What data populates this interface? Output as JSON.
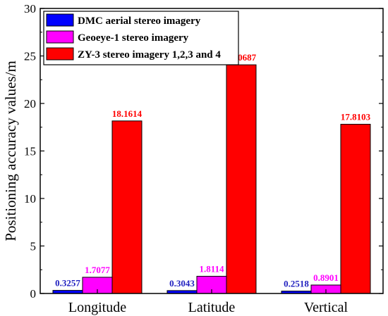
{
  "chart_data": {
    "type": "bar",
    "ylabel": "Positioning accuracy values/m",
    "xlabel": "",
    "categories": [
      "Longitude",
      "Latitude",
      "Vertical"
    ],
    "ylim": [
      0,
      30
    ],
    "yticks": [
      0,
      5,
      10,
      15,
      20,
      25,
      30
    ],
    "grid": false,
    "legend_position": "top-left",
    "series": [
      {
        "name": "DMC aerial stereo imagery",
        "color": "#0000ff",
        "label_color": "#1f1fbf",
        "values": [
          0.3257,
          0.3043,
          0.2518
        ],
        "labels": [
          "0.3257",
          "0.3043",
          "0.2518"
        ]
      },
      {
        "name": "Geoeye-1 stereo imagery",
        "color": "#ff00ff",
        "label_color": "#ff00ff",
        "values": [
          1.7077,
          1.8114,
          0.8901
        ],
        "labels": [
          "1.7077",
          "1.8114",
          "0.8901"
        ]
      },
      {
        "name": "ZY-3 stereo imagery 1,2,3 and 4",
        "color": "#ff0000",
        "label_color": "#ff0000",
        "values": [
          18.1614,
          24.0687,
          17.8103
        ],
        "labels": [
          "18.1614",
          "24.0687",
          "17.8103"
        ]
      }
    ]
  }
}
